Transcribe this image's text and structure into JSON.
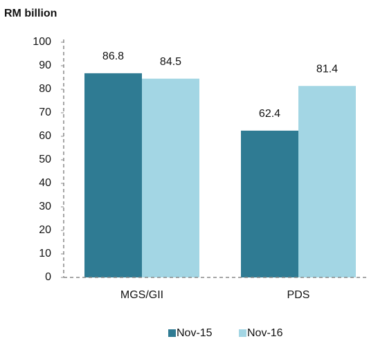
{
  "chart_data": {
    "type": "bar",
    "y_axis_title": "RM billion",
    "categories": [
      "MGS/GII",
      "PDS"
    ],
    "series": [
      {
        "name": "Nov-15",
        "color": "#2f7b93",
        "values": [
          86.8,
          62.4
        ]
      },
      {
        "name": "Nov-16",
        "color": "#a3d6e4",
        "values": [
          84.5,
          81.4
        ]
      }
    ],
    "ylim": [
      0,
      100
    ],
    "yticks": [
      0,
      10,
      20,
      30,
      40,
      50,
      60,
      70,
      80,
      90,
      100
    ],
    "legend": "bottom",
    "grid": false
  }
}
